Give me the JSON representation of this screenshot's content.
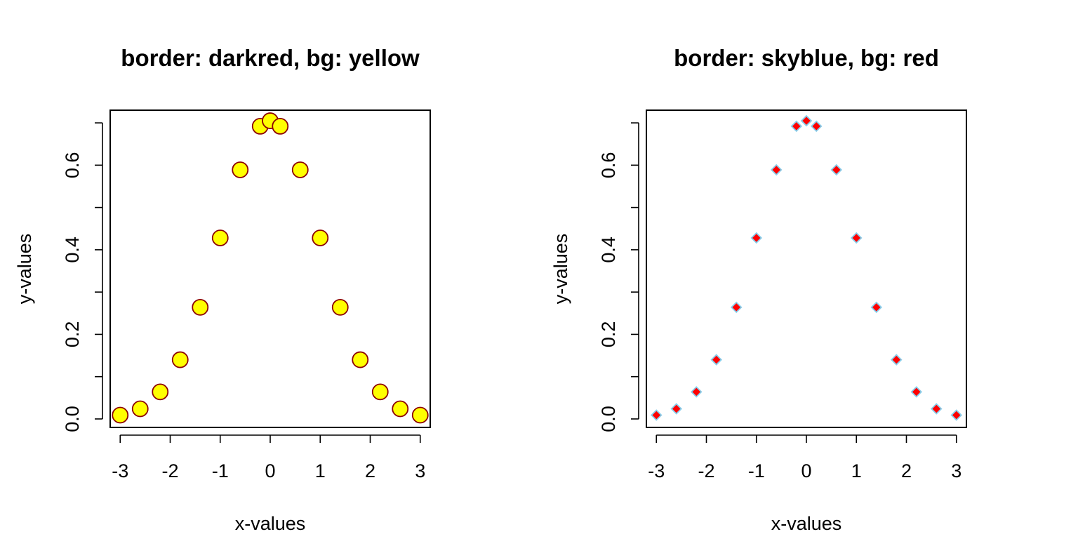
{
  "chart_data": [
    {
      "type": "scatter",
      "title": "border: darkred, bg: yellow",
      "xlabel": "x-values",
      "ylabel": "y-values",
      "xlim": [
        -3.2,
        3.2
      ],
      "ylim": [
        -0.02,
        0.73
      ],
      "xticks": [
        -3,
        -2,
        -1,
        0,
        1,
        2,
        3
      ],
      "xtick_labels": [
        "-3",
        "-2",
        "-1",
        "0",
        "1",
        "2",
        "3"
      ],
      "yticks": [
        0.0,
        0.1,
        0.2,
        0.3,
        0.4,
        0.5,
        0.6,
        0.7
      ],
      "ytick_labels": [
        "0.0",
        "0.2",
        "0.4",
        "0.6"
      ],
      "ytick_labeled": [
        0.0,
        0.2,
        0.4,
        0.6
      ],
      "grid": false,
      "marker": "circle",
      "marker_border_color": "#8B0000",
      "marker_fill_color": "#FFFF00",
      "x": [
        -3,
        -2.6,
        -2.2,
        -1.8,
        -1.4,
        -1,
        -0.6,
        -0.2,
        0,
        0.2,
        0.6,
        1,
        1.4,
        1.8,
        2.2,
        2.6,
        3
      ],
      "y": [
        0.009,
        0.024,
        0.064,
        0.14,
        0.264,
        0.428,
        0.589,
        0.692,
        0.705,
        0.692,
        0.589,
        0.428,
        0.264,
        0.14,
        0.064,
        0.024,
        0.009
      ]
    },
    {
      "type": "scatter",
      "title": "border: skyblue, bg: red",
      "xlabel": "x-values",
      "ylabel": "y-values",
      "xlim": [
        -3.2,
        3.2
      ],
      "ylim": [
        -0.02,
        0.73
      ],
      "xticks": [
        -3,
        -2,
        -1,
        0,
        1,
        2,
        3
      ],
      "xtick_labels": [
        "-3",
        "-2",
        "-1",
        "0",
        "1",
        "2",
        "3"
      ],
      "yticks": [
        0.0,
        0.1,
        0.2,
        0.3,
        0.4,
        0.5,
        0.6,
        0.7
      ],
      "ytick_labels": [
        "0.0",
        "0.2",
        "0.4",
        "0.6"
      ],
      "ytick_labeled": [
        0.0,
        0.2,
        0.4,
        0.6
      ],
      "grid": false,
      "marker": "diamond",
      "marker_border_color": "#87CEEB",
      "marker_fill_color": "#FF0000",
      "x": [
        -3,
        -2.6,
        -2.2,
        -1.8,
        -1.4,
        -1,
        -0.6,
        -0.2,
        0,
        0.2,
        0.6,
        1,
        1.4,
        1.8,
        2.2,
        2.6,
        3
      ],
      "y": [
        0.009,
        0.024,
        0.064,
        0.14,
        0.264,
        0.428,
        0.589,
        0.692,
        0.705,
        0.692,
        0.589,
        0.428,
        0.264,
        0.14,
        0.064,
        0.024,
        0.009
      ]
    }
  ]
}
